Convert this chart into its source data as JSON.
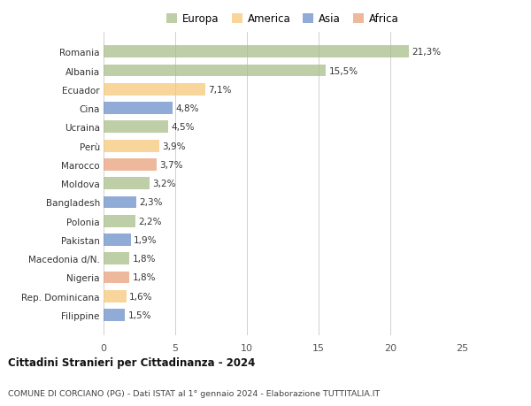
{
  "categories": [
    "Filippine",
    "Rep. Dominicana",
    "Nigeria",
    "Macedonia d/N.",
    "Pakistan",
    "Polonia",
    "Bangladesh",
    "Moldova",
    "Marocco",
    "Perù",
    "Ucraina",
    "Cina",
    "Ecuador",
    "Albania",
    "Romania"
  ],
  "values": [
    1.5,
    1.6,
    1.8,
    1.8,
    1.9,
    2.2,
    2.3,
    3.2,
    3.7,
    3.9,
    4.5,
    4.8,
    7.1,
    15.5,
    21.3
  ],
  "labels": [
    "1,5%",
    "1,6%",
    "1,8%",
    "1,8%",
    "1,9%",
    "2,2%",
    "2,3%",
    "3,2%",
    "3,7%",
    "3,9%",
    "4,5%",
    "4,8%",
    "7,1%",
    "15,5%",
    "21,3%"
  ],
  "colors": [
    "#6b8fc7",
    "#f5c87a",
    "#e8a07a",
    "#a8bf8a",
    "#6b8fc7",
    "#a8bf8a",
    "#6b8fc7",
    "#a8bf8a",
    "#e8a07a",
    "#f5c87a",
    "#a8bf8a",
    "#6b8fc7",
    "#f5c87a",
    "#a8bf8a",
    "#a8bf8a"
  ],
  "legend": {
    "Europa": "#a8bf8a",
    "America": "#f5c87a",
    "Asia": "#6b8fc7",
    "Africa": "#e8a07a"
  },
  "title": "Cittadini Stranieri per Cittadinanza - 2024",
  "subtitle": "COMUNE DI CORCIANO (PG) - Dati ISTAT al 1° gennaio 2024 - Elaborazione TUTTITALIA.IT",
  "xlim": [
    0,
    25
  ],
  "xticks": [
    0,
    5,
    10,
    15,
    20,
    25
  ],
  "background_color": "#ffffff",
  "bar_alpha": 0.75,
  "bar_height": 0.65
}
